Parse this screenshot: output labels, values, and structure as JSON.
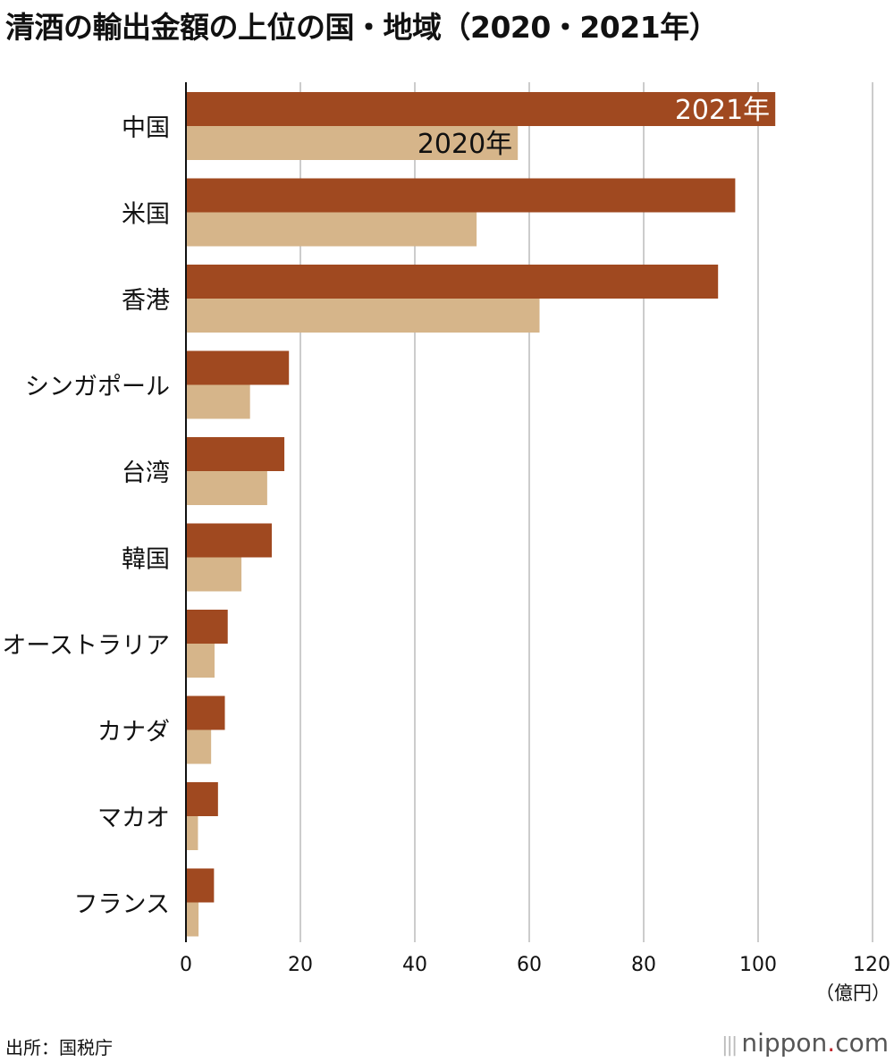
{
  "page": {
    "title": "清酒の輸出金額の上位の国・地域（2020・2021年）",
    "source": "出所：国税庁",
    "brand": {
      "name": "nippon",
      "dot": ".",
      "tld": "com"
    }
  },
  "colors": {
    "series_2021": "#a04920",
    "series_2020": "#d6b58a",
    "grid": "#cccccc",
    "axis": "#111111",
    "label_on_2021": "#ffffff",
    "label_on_2020": "#111111"
  },
  "chart_data": {
    "type": "bar",
    "orientation": "horizontal",
    "categories": [
      "中国",
      "米国",
      "香港",
      "シンガポール",
      "台湾",
      "韓国",
      "オーストラリア",
      "カナダ",
      "マカオ",
      "フランス"
    ],
    "series": [
      {
        "name": "2021年",
        "values": [
          103,
          96,
          93,
          18,
          17.2,
          15,
          7.3,
          6.8,
          5.6,
          4.9
        ]
      },
      {
        "name": "2020年",
        "values": [
          58,
          50.8,
          61.8,
          11.2,
          14.2,
          9.7,
          5.0,
          4.4,
          2.1,
          2.2
        ]
      }
    ],
    "xlim": [
      0,
      120
    ],
    "xticks": [
      0,
      20,
      40,
      60,
      80,
      100,
      120
    ],
    "unit": "（億円）",
    "grid": true,
    "legend": "inline labels inside first category bars"
  }
}
